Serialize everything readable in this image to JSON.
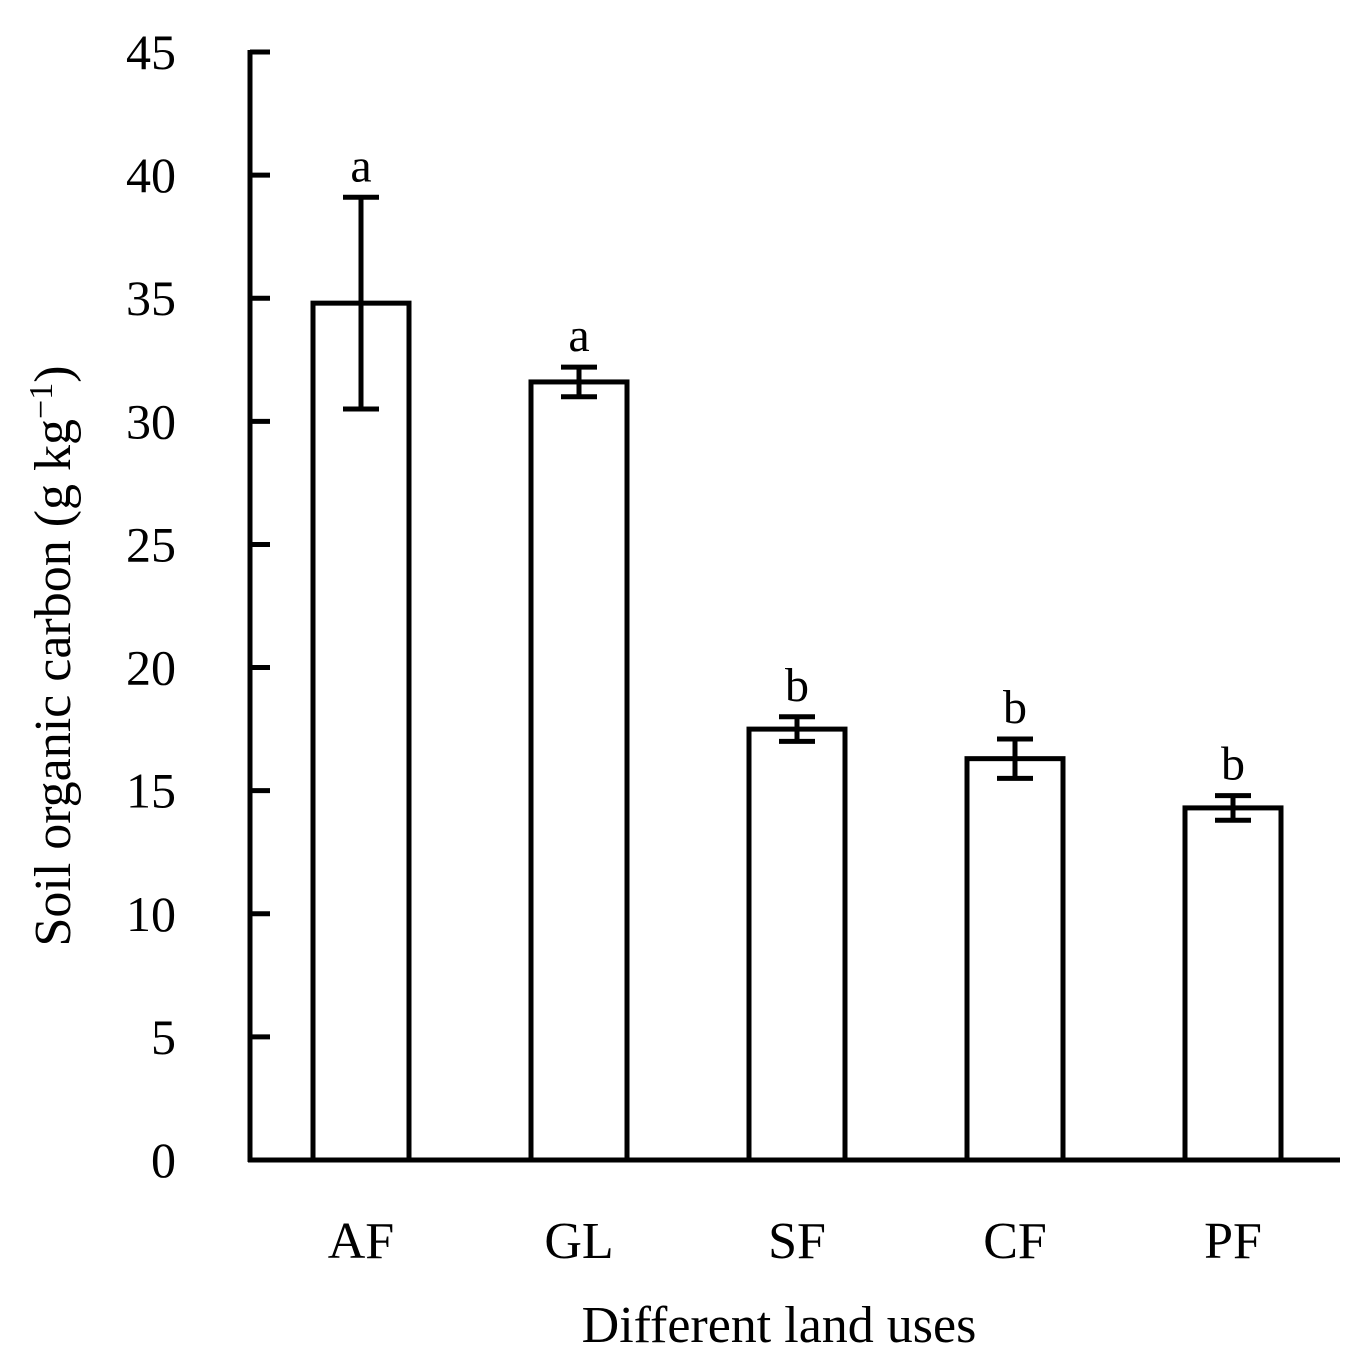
{
  "chart_data": {
    "type": "bar",
    "categories": [
      "AF",
      "GL",
      "SF",
      "CF",
      "PF"
    ],
    "values": [
      34.8,
      31.6,
      17.5,
      16.3,
      14.3
    ],
    "errors": [
      4.3,
      0.6,
      0.5,
      0.8,
      0.5
    ],
    "significance": [
      "a",
      "a",
      "b",
      "b",
      "b"
    ],
    "xlabel": "Different land uses",
    "ylabel": {
      "main": "Soil organic carbon (g kg",
      "superscript": "−1",
      "close": ")"
    },
    "ylim": [
      0,
      45
    ],
    "yticks": [
      "0",
      "5",
      "10",
      "15",
      "20",
      "25",
      "30",
      "35",
      "40",
      "45"
    ],
    "grid": false,
    "legend": "none",
    "colors": {
      "bar_fill": "#ffffff",
      "stroke": "#000000"
    }
  }
}
